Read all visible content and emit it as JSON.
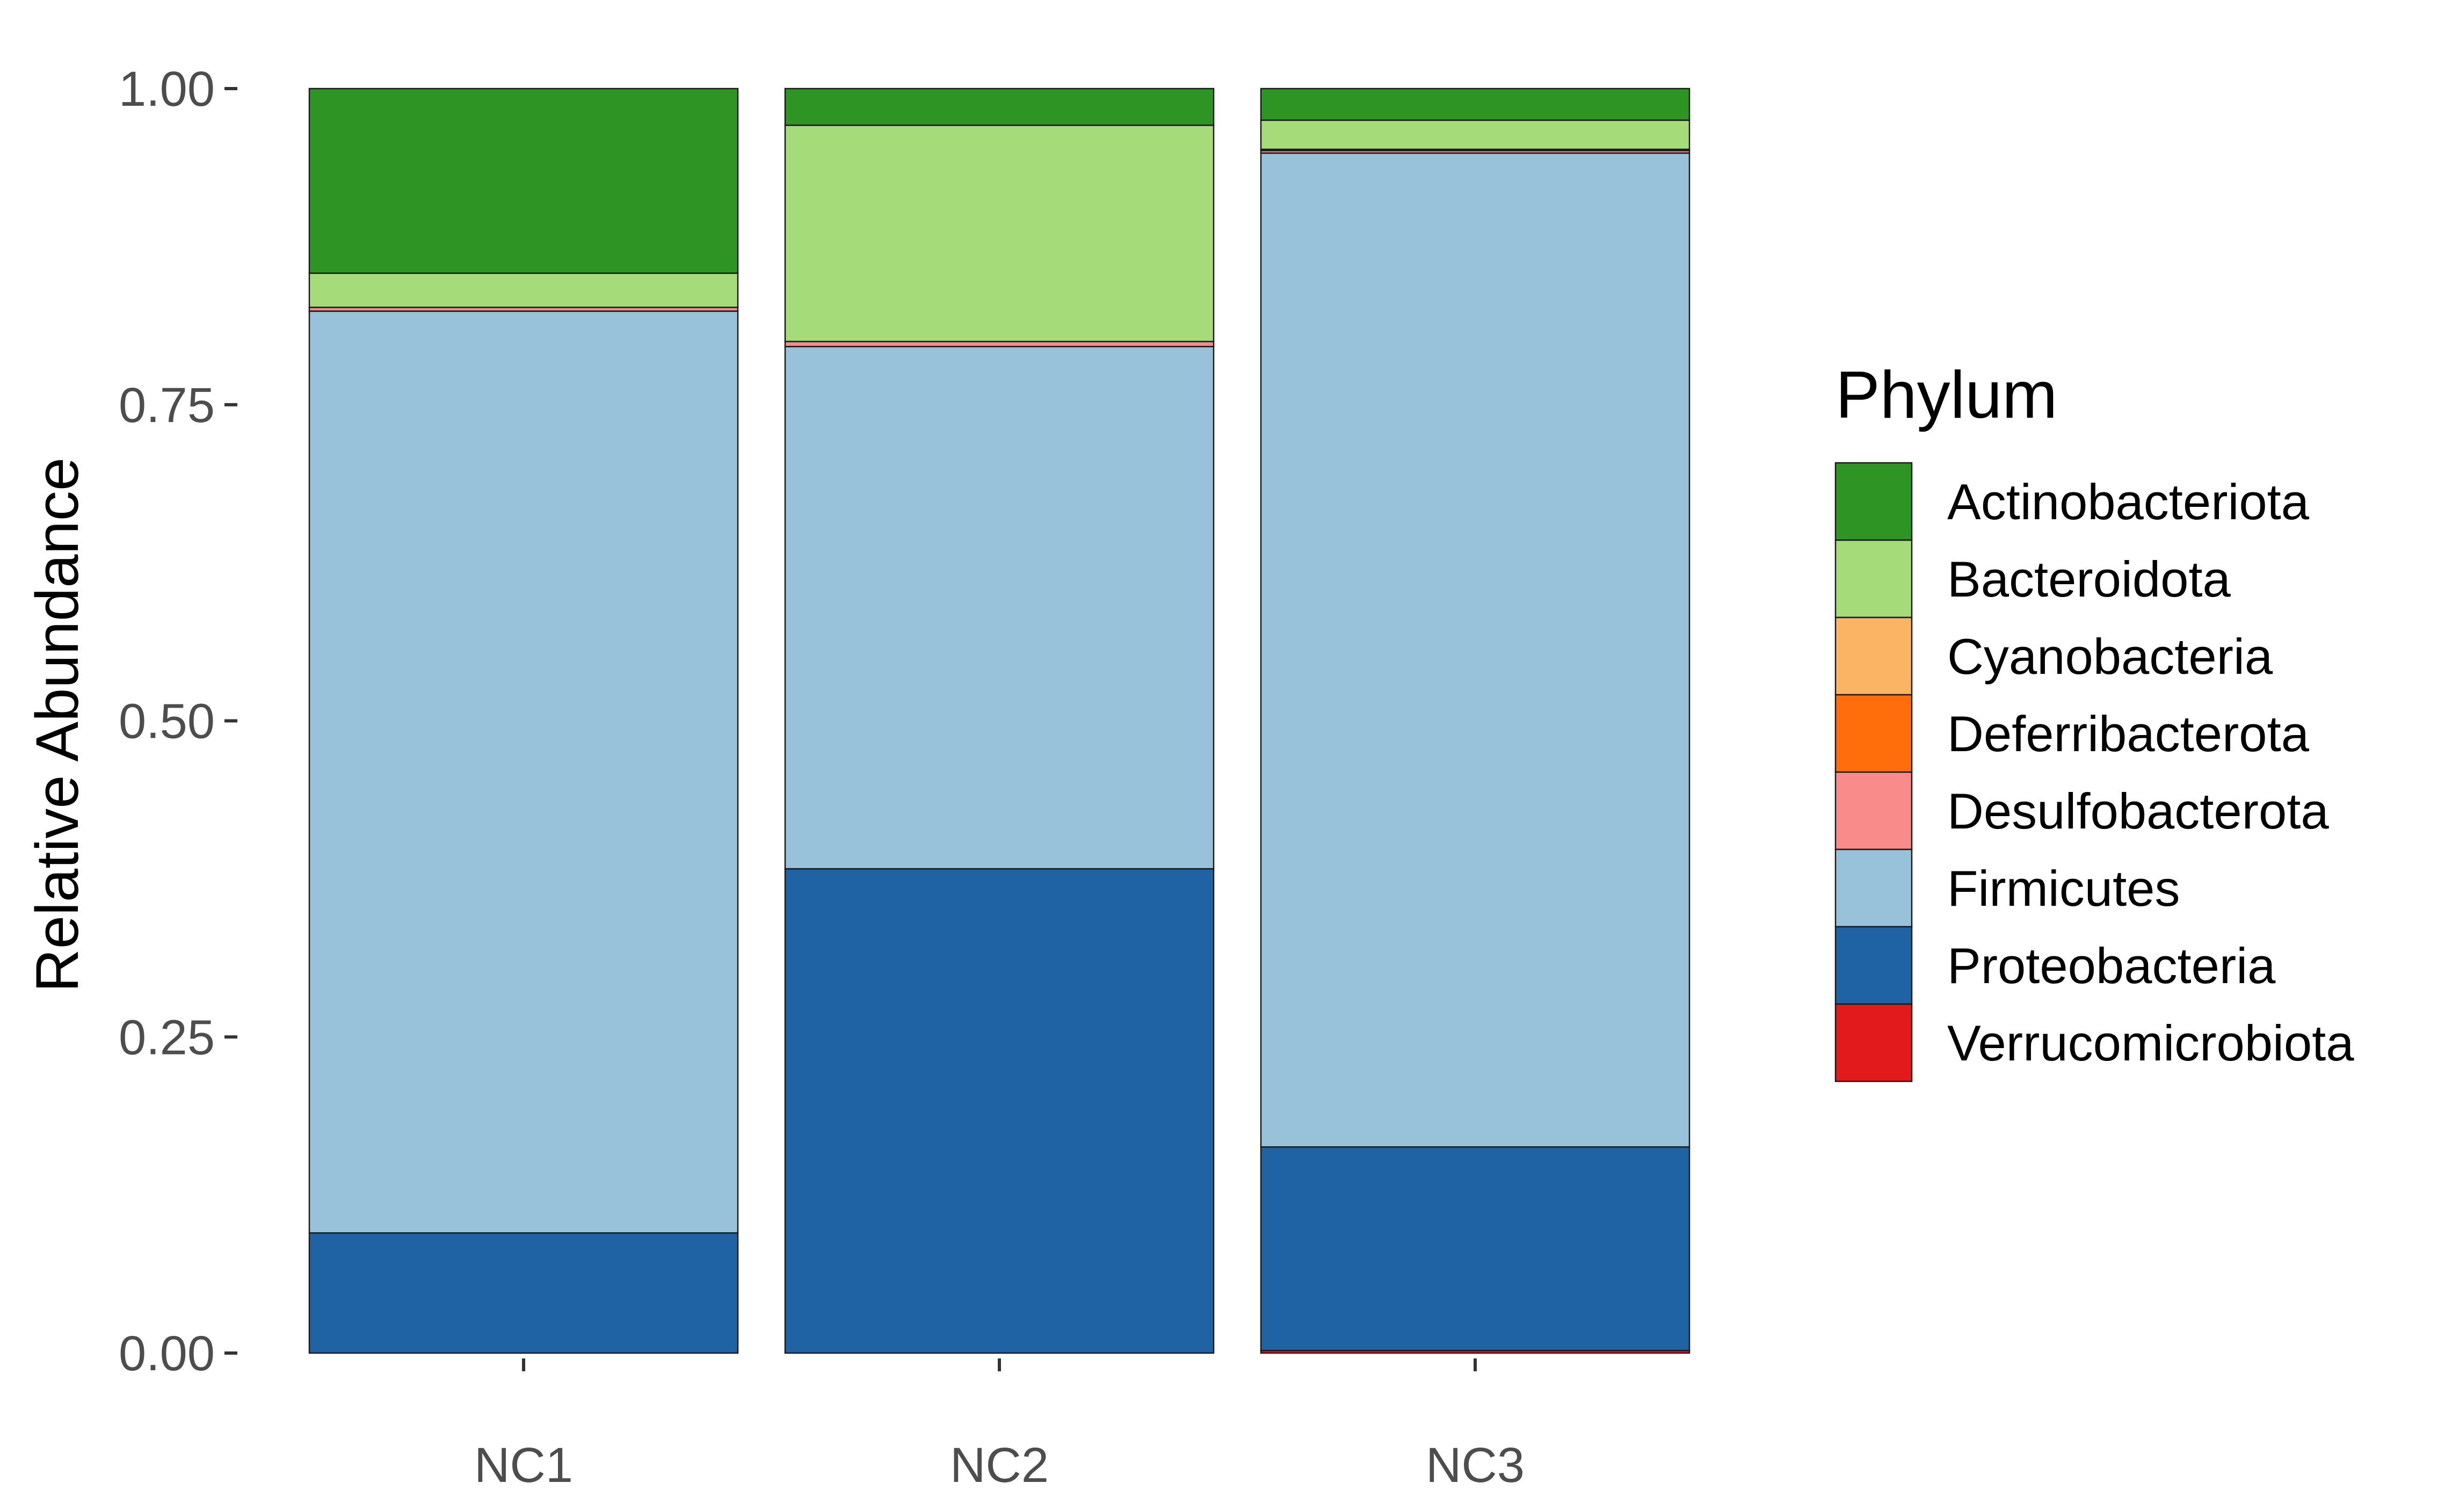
{
  "chart_data": {
    "type": "bar",
    "stacked": true,
    "title": "",
    "xlabel": "",
    "ylabel": "Relative Abundance",
    "ylim": [
      0,
      1
    ],
    "yticks": [
      "0.00",
      "0.25",
      "0.50",
      "0.75",
      "1.00"
    ],
    "categories": [
      "NC1",
      "NC2",
      "NC3"
    ],
    "legend_title": "Phylum",
    "legend_position": "right",
    "grid": false,
    "series": [
      {
        "name": "Verrucomicrobiota",
        "color": "#E31A1C",
        "values": [
          0.0,
          0.0,
          0.002
        ]
      },
      {
        "name": "Proteobacteria",
        "color": "#1F63A4",
        "values": [
          0.095,
          0.383,
          0.161
        ]
      },
      {
        "name": "Firmicutes",
        "color": "#97C2DA",
        "values": [
          0.729,
          0.413,
          0.786
        ]
      },
      {
        "name": "Desulfobacterota",
        "color": "#F98B8B",
        "values": [
          0.003,
          0.004,
          0.002
        ]
      },
      {
        "name": "Deferribacterota",
        "color": "#FF6E0A",
        "values": [
          0.0,
          0.0,
          0.001
        ]
      },
      {
        "name": "Cyanobacteria",
        "color": "#FBB463",
        "values": [
          0.0,
          0.0,
          0.0
        ]
      },
      {
        "name": "Bacteroidota",
        "color": "#A6DB7A",
        "values": [
          0.027,
          0.171,
          0.023
        ]
      },
      {
        "name": "Actinobacteriota",
        "color": "#2E9423",
        "values": [
          0.146,
          0.029,
          0.025
        ]
      }
    ],
    "legend_order": [
      "Actinobacteriota",
      "Bacteroidota",
      "Cyanobacteria",
      "Deferribacterota",
      "Desulfobacterota",
      "Firmicutes",
      "Proteobacteria",
      "Verrucomicrobiota"
    ]
  }
}
